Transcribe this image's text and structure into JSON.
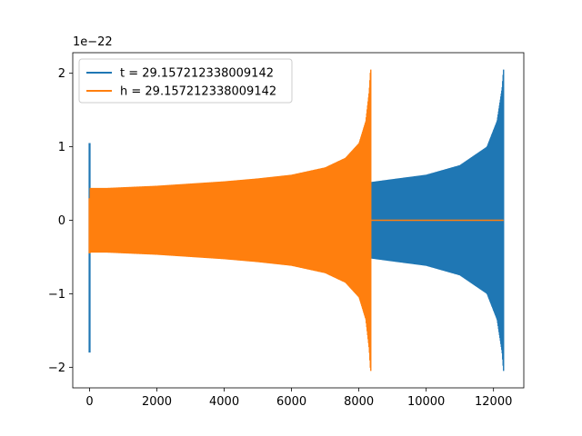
{
  "chart_data": {
    "type": "line",
    "title": "",
    "xlabel": "",
    "ylabel": "",
    "xlim": [
      -500,
      12900
    ],
    "ylim": [
      -2.28,
      2.28
    ],
    "y_offset_label": "1e−22",
    "x_ticks": [
      0,
      2000,
      4000,
      6000,
      8000,
      10000,
      12000
    ],
    "x_tick_labels": [
      "0",
      "2000",
      "4000",
      "6000",
      "8000",
      "10000",
      "12000"
    ],
    "y_ticks": [
      -2,
      -1,
      0,
      1,
      2
    ],
    "y_tick_labels": [
      "−2",
      "−1",
      "0",
      "1",
      "2"
    ],
    "grid": false,
    "legend": "top-left",
    "series": [
      {
        "name": "t = 29.157212338009142",
        "color": "#1f77b4",
        "x_range": [
          0,
          12300
        ],
        "start_spike": {
          "x": 0,
          "max": 1.05,
          "min": -1.8
        },
        "envelope_x": [
          120,
          1000,
          2000,
          3000,
          4000,
          5000,
          6000,
          7000,
          8000,
          8350,
          9000,
          10000,
          11000,
          11800,
          12100,
          12250,
          12290
        ],
        "envelope_amplitude": [
          0.0,
          0.0,
          0.0,
          0.0,
          0.0,
          0.0,
          0.0,
          0.0,
          0.0,
          0.52,
          0.56,
          0.62,
          0.75,
          1.0,
          1.35,
          1.8,
          2.05
        ]
      },
      {
        "name": "h = 29.157212338009142",
        "color": "#ff7f0e",
        "x_range": [
          0,
          12300
        ],
        "start_spike": {
          "x": 0,
          "max": 0.3,
          "min": -0.45
        },
        "envelope_x": [
          30,
          500,
          1000,
          2000,
          3000,
          4000,
          5000,
          6000,
          7000,
          7600,
          8000,
          8200,
          8300,
          8340
        ],
        "envelope_amplitude": [
          0.44,
          0.44,
          0.45,
          0.47,
          0.5,
          0.53,
          0.57,
          0.62,
          0.72,
          0.85,
          1.05,
          1.35,
          1.75,
          2.05
        ]
      }
    ]
  }
}
